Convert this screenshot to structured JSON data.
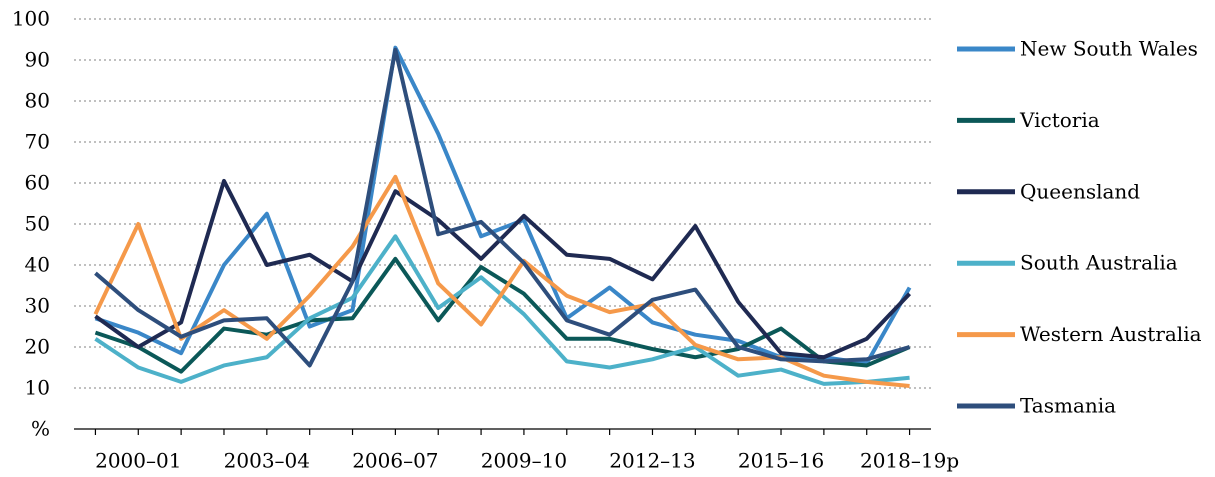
{
  "chart_data": {
    "type": "line",
    "categories": [
      null,
      "2000–01",
      null,
      null,
      "2003–04",
      null,
      null,
      "2006–07",
      null,
      null,
      "2009–10",
      null,
      null,
      "2012–13",
      null,
      null,
      "2015–16",
      null,
      null,
      "2018–19p"
    ],
    "series": [
      {
        "name": "New South Wales",
        "color": "#3a87c8",
        "values": [
          27,
          23.5,
          18.5,
          40,
          52.5,
          25,
          29,
          93,
          72,
          47,
          51,
          27,
          34.5,
          26,
          23,
          21.5,
          17.5,
          17.5,
          16,
          34.5
        ]
      },
      {
        "name": "Victoria",
        "color": "#0b5858",
        "values": [
          23.5,
          20,
          14,
          24.5,
          23,
          26.5,
          27,
          41.5,
          26.5,
          39.5,
          33,
          22,
          22,
          19.5,
          17.5,
          19.5,
          24.5,
          16.5,
          15.5,
          20
        ]
      },
      {
        "name": "Queensland",
        "color": "#1f2a52",
        "values": [
          27.5,
          20,
          26,
          60.5,
          40,
          42.5,
          36,
          58,
          51,
          41.5,
          52,
          42.5,
          41.5,
          36.5,
          49.5,
          31,
          18.5,
          17.5,
          22,
          33
        ]
      },
      {
        "name": "South Australia",
        "color": "#4db1c9",
        "values": [
          22,
          15,
          11.5,
          15.5,
          17.5,
          27,
          32,
          47,
          29.5,
          37,
          28,
          16.5,
          15,
          17,
          20,
          13,
          14.5,
          11,
          11.5,
          12.5
        ]
      },
      {
        "name": "Western Australia",
        "color": "#f5994a",
        "values": [
          28,
          50,
          22,
          29,
          22,
          32.5,
          44.5,
          61.5,
          35.5,
          25.5,
          41,
          32.5,
          28.5,
          30.5,
          20.5,
          17,
          17.5,
          13,
          11.5,
          10.5
        ]
      },
      {
        "name": "Tasmania",
        "color": "#2e4e7c",
        "values": [
          38,
          29,
          22.5,
          26.5,
          27,
          15.5,
          36,
          92.5,
          47.5,
          50.5,
          40.5,
          26.5,
          23,
          31.5,
          34,
          20,
          17,
          16.5,
          17,
          20
        ]
      }
    ],
    "ylim": [
      0,
      100
    ],
    "yticks": [
      {
        "value": 0,
        "label": "%"
      },
      10,
      20,
      30,
      40,
      50,
      60,
      70,
      80,
      90,
      100
    ],
    "grid": true,
    "legend": "right"
  }
}
